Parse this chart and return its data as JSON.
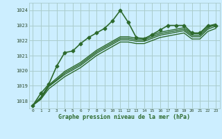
{
  "title": "Graphe pression niveau de la mer (hPa)",
  "bg_color": "#cceeff",
  "grid_color": "#aacccc",
  "line_color": "#2d6a2d",
  "xlim": [
    -0.5,
    23.5
  ],
  "ylim": [
    1017.5,
    1024.5
  ],
  "yticks": [
    1018,
    1019,
    1020,
    1021,
    1022,
    1023,
    1024
  ],
  "xticks": [
    0,
    1,
    2,
    3,
    4,
    5,
    6,
    7,
    8,
    9,
    10,
    11,
    12,
    13,
    14,
    15,
    16,
    17,
    18,
    19,
    20,
    21,
    22,
    23
  ],
  "series": [
    {
      "x": [
        0,
        1,
        2,
        3,
        4,
        5,
        6,
        7,
        8,
        9,
        10,
        11,
        12,
        13,
        14,
        15,
        16,
        17,
        18,
        19,
        20,
        21,
        22,
        23
      ],
      "y": [
        1017.7,
        1018.5,
        1019.1,
        1020.3,
        1021.2,
        1021.3,
        1021.8,
        1022.2,
        1022.5,
        1022.8,
        1023.3,
        1024.0,
        1023.2,
        1022.2,
        1022.1,
        1022.4,
        1022.7,
        1023.0,
        1023.0,
        1023.0,
        1022.5,
        1022.5,
        1023.0,
        1023.0
      ],
      "marker": "D",
      "lw": 1.2,
      "ms": 2.5
    },
    {
      "x": [
        0,
        1,
        2,
        3,
        4,
        5,
        6,
        7,
        8,
        9,
        10,
        11,
        12,
        13,
        14,
        15,
        16,
        17,
        18,
        19,
        20,
        21,
        22,
        23
      ],
      "y": [
        1017.7,
        1018.1,
        1018.8,
        1019.2,
        1019.6,
        1019.9,
        1020.2,
        1020.6,
        1021.0,
        1021.3,
        1021.6,
        1021.9,
        1021.9,
        1021.8,
        1021.8,
        1022.0,
        1022.2,
        1022.3,
        1022.4,
        1022.5,
        1022.1,
        1022.1,
        1022.6,
        1022.8
      ],
      "marker": null,
      "lw": 1.0,
      "ms": 0
    },
    {
      "x": [
        0,
        1,
        2,
        3,
        4,
        5,
        6,
        7,
        8,
        9,
        10,
        11,
        12,
        13,
        14,
        15,
        16,
        17,
        18,
        19,
        20,
        21,
        22,
        23
      ],
      "y": [
        1017.7,
        1018.15,
        1018.95,
        1019.35,
        1019.75,
        1020.05,
        1020.35,
        1020.75,
        1021.15,
        1021.45,
        1021.75,
        1022.05,
        1022.05,
        1021.95,
        1021.95,
        1022.15,
        1022.35,
        1022.45,
        1022.55,
        1022.65,
        1022.25,
        1022.25,
        1022.75,
        1022.95
      ],
      "marker": null,
      "lw": 1.0,
      "ms": 0
    },
    {
      "x": [
        0,
        1,
        2,
        3,
        4,
        5,
        6,
        7,
        8,
        9,
        10,
        11,
        12,
        13,
        14,
        15,
        16,
        17,
        18,
        19,
        20,
        21,
        22,
        23
      ],
      "y": [
        1017.7,
        1018.2,
        1019.0,
        1019.4,
        1019.85,
        1020.15,
        1020.45,
        1020.85,
        1021.25,
        1021.55,
        1021.85,
        1022.15,
        1022.15,
        1022.05,
        1022.05,
        1022.25,
        1022.45,
        1022.55,
        1022.65,
        1022.75,
        1022.35,
        1022.35,
        1022.85,
        1023.05
      ],
      "marker": null,
      "lw": 1.0,
      "ms": 0
    },
    {
      "x": [
        0,
        1,
        2,
        3,
        4,
        5,
        6,
        7,
        8,
        9,
        10,
        11,
        12,
        13,
        14,
        15,
        16,
        17,
        18,
        19,
        20,
        21,
        22,
        23
      ],
      "y": [
        1017.7,
        1018.25,
        1019.05,
        1019.5,
        1019.95,
        1020.25,
        1020.55,
        1020.95,
        1021.35,
        1021.65,
        1021.95,
        1022.25,
        1022.25,
        1022.15,
        1022.15,
        1022.35,
        1022.55,
        1022.65,
        1022.75,
        1022.85,
        1022.45,
        1022.45,
        1022.95,
        1023.1
      ],
      "marker": null,
      "lw": 1.0,
      "ms": 0
    }
  ]
}
